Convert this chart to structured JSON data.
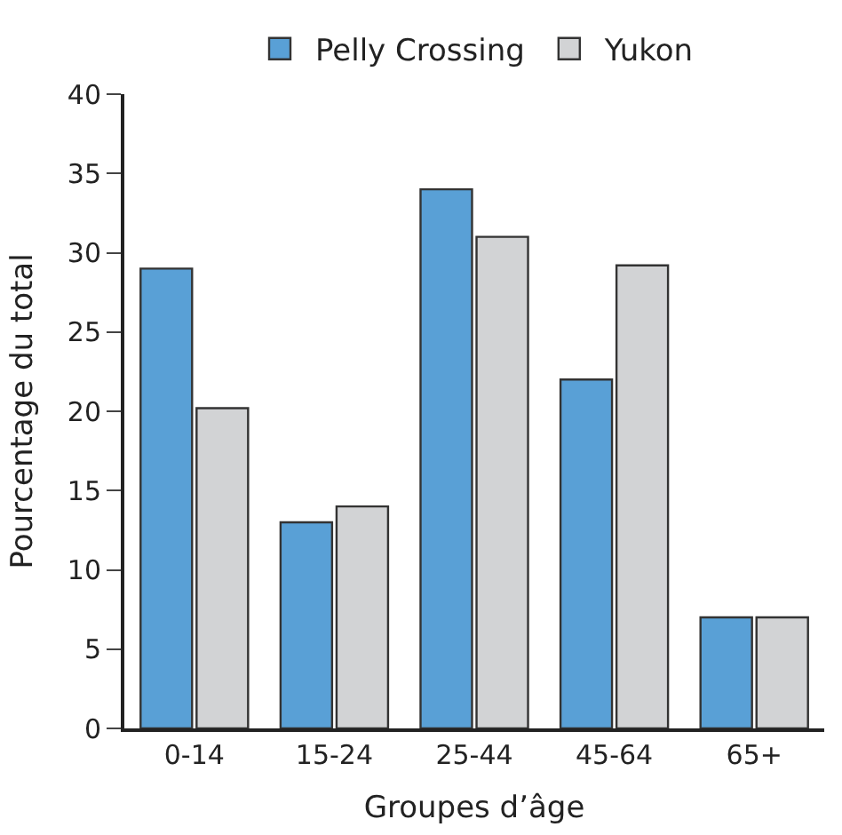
{
  "chart_data": {
    "type": "bar",
    "xlabel": "Groupes d’âge",
    "ylabel": "Pourcentage du total",
    "categories": [
      "0-14",
      "15-24",
      "25-44",
      "45-64",
      "65+"
    ],
    "series": [
      {
        "name": "Pelly Crossing",
        "color": "#59a0d6",
        "values": [
          29,
          13,
          34,
          22,
          7
        ]
      },
      {
        "name": "Yukon",
        "color": "#d2d3d5",
        "values": [
          20.2,
          14,
          31,
          29.2,
          7
        ]
      }
    ],
    "ylim": [
      0,
      40
    ],
    "yticks": [
      0,
      5,
      10,
      15,
      20,
      25,
      30,
      35,
      40
    ],
    "legend": "top"
  }
}
